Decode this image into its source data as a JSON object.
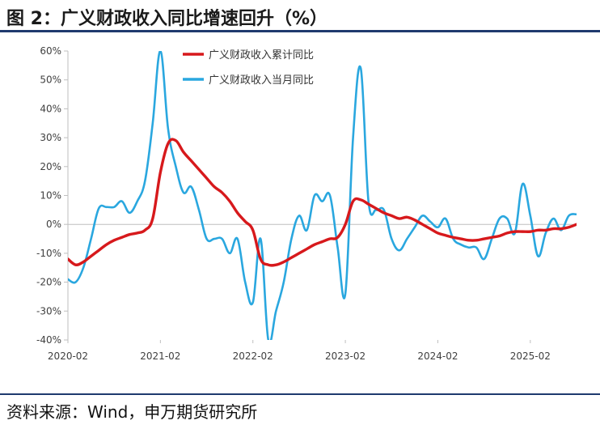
{
  "header": {
    "title": "图 2：广义财政收入同比增速回升（%）"
  },
  "footer": {
    "source": "资料来源：Wind，申万期货研究所"
  },
  "colors": {
    "cumulative": "#d7191c",
    "monthly": "#2aa7df",
    "axis": "#bfbfbf",
    "text": "#404040"
  },
  "chart_data": {
    "type": "line",
    "title": "广义财政收入同比增速回升（%）",
    "xlabel": "",
    "ylabel": "",
    "x_start": "2020-02",
    "x_end": "2025-08",
    "x_ticks": [
      "2020-02",
      "2021-02",
      "2022-02",
      "2023-02",
      "2024-02",
      "2025-02"
    ],
    "ylim": [
      -40,
      60
    ],
    "y_ticks": [
      -40,
      -30,
      -20,
      -10,
      0,
      10,
      20,
      30,
      40,
      50,
      60
    ],
    "y_tick_labels": [
      "-40%",
      "-30%",
      "-20%",
      "-10%",
      "0%",
      "10%",
      "20%",
      "30%",
      "40%",
      "50%",
      "60%"
    ],
    "grid": false,
    "legend_position": "top",
    "series": [
      {
        "name": "广义财政收入累计同比",
        "color": "#d7191c",
        "points": [
          [
            "2020-02",
            -12
          ],
          [
            "2020-03",
            -14
          ],
          [
            "2020-04",
            -13
          ],
          [
            "2020-05",
            -11
          ],
          [
            "2020-06",
            -9
          ],
          [
            "2020-07",
            -7
          ],
          [
            "2020-08",
            -5.5
          ],
          [
            "2020-09",
            -4.5
          ],
          [
            "2020-10",
            -3.5
          ],
          [
            "2020-11",
            -3
          ],
          [
            "2020-12",
            -2
          ],
          [
            "2021-01",
            2
          ],
          [
            "2021-02",
            18
          ],
          [
            "2021-03",
            28
          ],
          [
            "2021-04",
            29
          ],
          [
            "2021-05",
            25
          ],
          [
            "2021-06",
            22
          ],
          [
            "2021-07",
            19
          ],
          [
            "2021-08",
            16
          ],
          [
            "2021-09",
            13
          ],
          [
            "2021-10",
            11
          ],
          [
            "2021-11",
            8
          ],
          [
            "2021-12",
            4
          ],
          [
            "2022-01",
            1
          ],
          [
            "2022-02",
            -2
          ],
          [
            "2022-03",
            -12
          ],
          [
            "2022-04",
            -14
          ],
          [
            "2022-05",
            -14
          ],
          [
            "2022-06",
            -13
          ],
          [
            "2022-07",
            -11.5
          ],
          [
            "2022-08",
            -10
          ],
          [
            "2022-09",
            -8.5
          ],
          [
            "2022-10",
            -7
          ],
          [
            "2022-11",
            -6
          ],
          [
            "2022-12",
            -5
          ],
          [
            "2023-01",
            -4.5
          ],
          [
            "2023-02",
            0
          ],
          [
            "2023-03",
            8
          ],
          [
            "2023-04",
            8.5
          ],
          [
            "2023-05",
            7
          ],
          [
            "2023-06",
            5.5
          ],
          [
            "2023-07",
            4
          ],
          [
            "2023-08",
            3
          ],
          [
            "2023-09",
            2
          ],
          [
            "2023-10",
            2.5
          ],
          [
            "2023-11",
            1.5
          ],
          [
            "2023-12",
            0
          ],
          [
            "2024-01",
            -1.5
          ],
          [
            "2024-02",
            -3
          ],
          [
            "2024-03",
            -3.8
          ],
          [
            "2024-04",
            -4.5
          ],
          [
            "2024-05",
            -5
          ],
          [
            "2024-06",
            -5.5
          ],
          [
            "2024-07",
            -5.5
          ],
          [
            "2024-08",
            -5
          ],
          [
            "2024-09",
            -4.5
          ],
          [
            "2024-10",
            -4
          ],
          [
            "2024-11",
            -3
          ],
          [
            "2024-12",
            -2.5
          ],
          [
            "2025-01",
            -2.5
          ],
          [
            "2025-02",
            -2.5
          ],
          [
            "2025-03",
            -2
          ],
          [
            "2025-04",
            -2
          ],
          [
            "2025-05",
            -1.5
          ],
          [
            "2025-06",
            -1.5
          ],
          [
            "2025-07",
            -1
          ],
          [
            "2025-08",
            0
          ]
        ]
      },
      {
        "name": "广义财政收入当月同比",
        "color": "#2aa7df",
        "points": [
          [
            "2020-02",
            -19
          ],
          [
            "2020-03",
            -20
          ],
          [
            "2020-04",
            -15
          ],
          [
            "2020-05",
            -5
          ],
          [
            "2020-06",
            5.5
          ],
          [
            "2020-07",
            6
          ],
          [
            "2020-08",
            6
          ],
          [
            "2020-09",
            8
          ],
          [
            "2020-10",
            4
          ],
          [
            "2020-11",
            8
          ],
          [
            "2020-12",
            15
          ],
          [
            "2021-01",
            35
          ],
          [
            "2021-02",
            60
          ],
          [
            "2021-03",
            33
          ],
          [
            "2021-04",
            20
          ],
          [
            "2021-05",
            11
          ],
          [
            "2021-06",
            13
          ],
          [
            "2021-07",
            5
          ],
          [
            "2021-08",
            -5
          ],
          [
            "2021-09",
            -5
          ],
          [
            "2021-10",
            -5
          ],
          [
            "2021-11",
            -10
          ],
          [
            "2021-12",
            -5
          ],
          [
            "2022-01",
            -20
          ],
          [
            "2022-02",
            -27
          ],
          [
            "2022-03",
            -5
          ],
          [
            "2022-04",
            -40
          ],
          [
            "2022-05",
            -30
          ],
          [
            "2022-06",
            -20
          ],
          [
            "2022-07",
            -5
          ],
          [
            "2022-08",
            3
          ],
          [
            "2022-09",
            -2
          ],
          [
            "2022-10",
            10
          ],
          [
            "2022-11",
            8
          ],
          [
            "2022-12",
            10
          ],
          [
            "2023-01",
            -8
          ],
          [
            "2023-02",
            -24
          ],
          [
            "2023-03",
            30
          ],
          [
            "2023-04",
            54
          ],
          [
            "2023-05",
            8
          ],
          [
            "2023-06",
            5
          ],
          [
            "2023-07",
            5
          ],
          [
            "2023-08",
            -5
          ],
          [
            "2023-09",
            -9
          ],
          [
            "2023-10",
            -5
          ],
          [
            "2023-11",
            -1
          ],
          [
            "2023-12",
            3
          ],
          [
            "2024-01",
            1
          ],
          [
            "2024-02",
            -1
          ],
          [
            "2024-03",
            2
          ],
          [
            "2024-04",
            -5
          ],
          [
            "2024-05",
            -7
          ],
          [
            "2024-06",
            -8
          ],
          [
            "2024-07",
            -8
          ],
          [
            "2024-08",
            -12
          ],
          [
            "2024-09",
            -5
          ],
          [
            "2024-10",
            2
          ],
          [
            "2024-11",
            2
          ],
          [
            "2024-12",
            -3
          ],
          [
            "2025-01",
            14
          ],
          [
            "2025-02",
            3
          ],
          [
            "2025-03",
            -11
          ],
          [
            "2025-04",
            -3
          ],
          [
            "2025-05",
            2
          ],
          [
            "2025-06",
            -2
          ],
          [
            "2025-07",
            3
          ],
          [
            "2025-08",
            3.5
          ]
        ]
      }
    ]
  }
}
